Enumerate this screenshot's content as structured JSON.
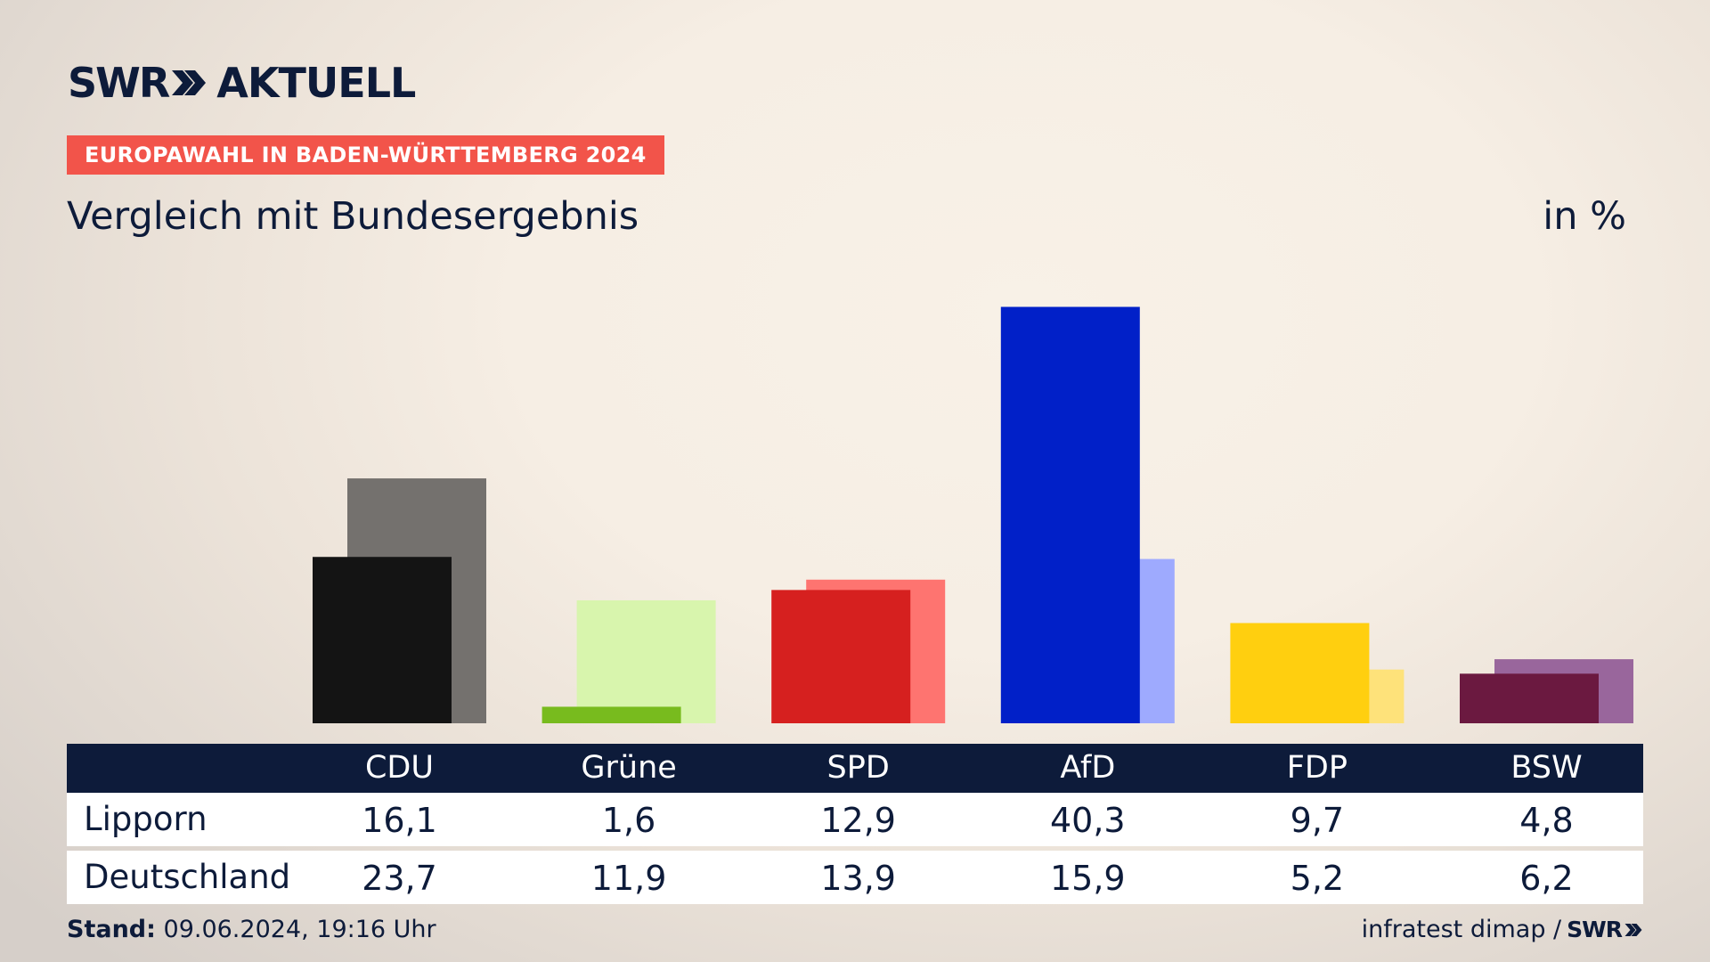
{
  "logo": {
    "swr": "SWR",
    "product": "AKTUELL"
  },
  "ribbon": "EUROPAWAHL IN BADEN-WÜRTTEMBERG 2024",
  "subtitle": "Vergleich mit Bundesergebnis",
  "unit": "in %",
  "footer": {
    "stand_label": "Stand:",
    "stand_value": "09.06.2024, 19:16 Uhr",
    "source": "infratest dimap /",
    "source_brand": "SWR"
  },
  "chart_data": {
    "type": "bar",
    "categories": [
      "CDU",
      "Grüne",
      "SPD",
      "AfD",
      "FDP",
      "BSW"
    ],
    "series": [
      {
        "name": "Lipporn",
        "values": [
          16.1,
          1.6,
          12.9,
          40.3,
          9.7,
          4.8
        ],
        "colors": [
          "#141414",
          "#78bb1e",
          "#d6201f",
          "#0120c8",
          "#ffcf0f",
          "#6b1940"
        ],
        "display": [
          "16,1",
          "1,6",
          "12,9",
          "40,3",
          "9,7",
          "4,8"
        ]
      },
      {
        "name": "Deutschland",
        "values": [
          23.7,
          11.9,
          13.9,
          15.9,
          5.2,
          6.2
        ],
        "colors": [
          "#74716e",
          "#d8f5ad",
          "#fe7470",
          "#9eaafe",
          "#fee27a",
          "#99669c"
        ],
        "display": [
          "23,7",
          "11,9",
          "13,9",
          "15,9",
          "5,2",
          "6,2"
        ]
      }
    ],
    "ylim": [
      0,
      41
    ],
    "grid": false,
    "legend": "table-below"
  }
}
